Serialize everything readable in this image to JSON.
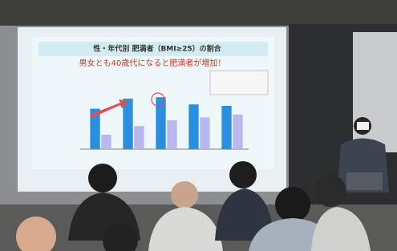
{
  "slide": {
    "title": "性・年代別 肥満者（BMI≥25）の割合",
    "subtitle": "男女とも40歳代になると肥満者が増加！",
    "chart": {
      "type": "bar",
      "ylim": [
        0,
        50
      ],
      "series": [
        {
          "color": "#2a8fe0",
          "values": [
            28,
            35,
            36,
            31,
            30
          ]
        },
        {
          "color": "#b9b7f0",
          "values": [
            10,
            16,
            20,
            22,
            24
          ]
        }
      ]
    }
  }
}
